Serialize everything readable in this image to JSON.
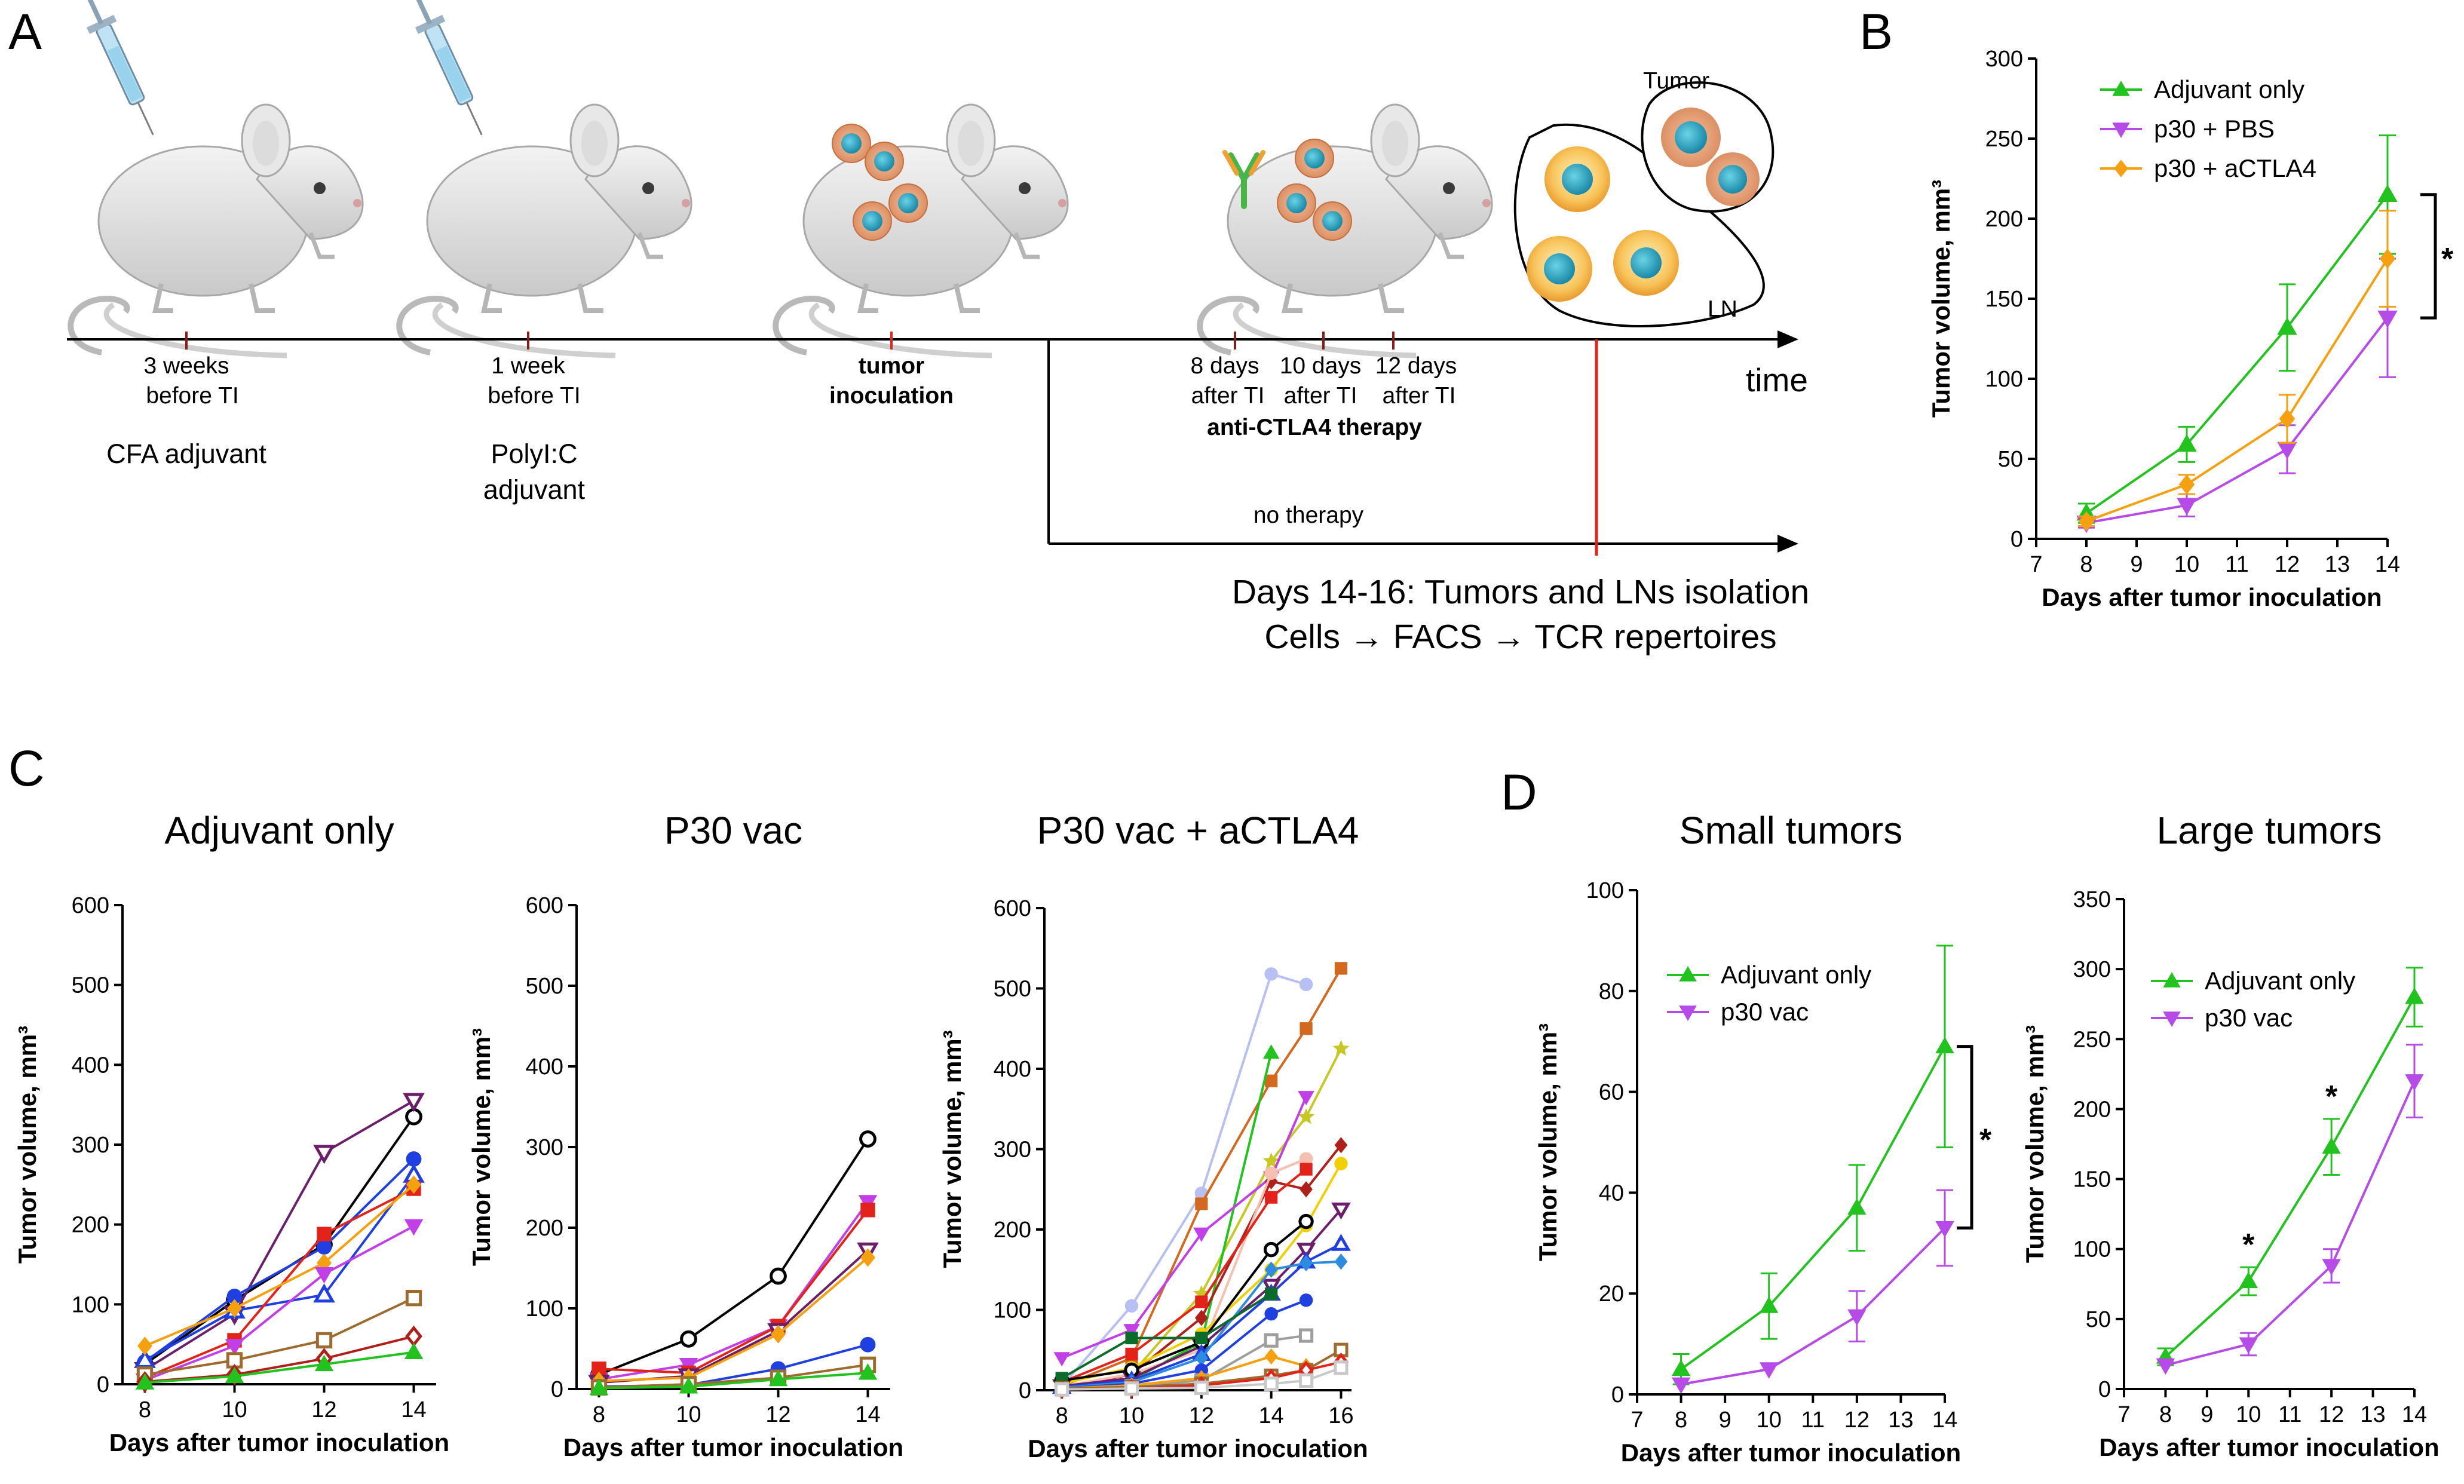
{
  "panels": {
    "A": "A",
    "B": "B",
    "C": "C",
    "D": "D"
  },
  "timeline": {
    "events": [
      {
        "line1": "3 weeks",
        "line2": "before TI",
        "note1": "CFA adjuvant",
        "note2": ""
      },
      {
        "line1": "1 week",
        "line2": "before TI",
        "note1": "PolyI:C",
        "note2": "adjuvant"
      },
      {
        "line1": "tumor",
        "line2": "inoculation",
        "note1": "",
        "note2": ""
      }
    ],
    "therapy_days": [
      "8 days",
      "10 days",
      "12 days"
    ],
    "therapy_after": [
      "after TI",
      "after TI",
      "after TI"
    ],
    "therapy_label": "anti-CTLA4 therapy",
    "no_therapy": "no therapy",
    "time_label": "time",
    "tumor_label": "Tumor",
    "ln_label": "LN",
    "footer_line1": "Days 14-16: Tumors and LNs isolation",
    "footer_line2": "Cells → FACS → TCR repertoires"
  },
  "colors": {
    "green": "#22c31f",
    "purple": "#b64be8",
    "orange": "#f5a00f",
    "red_line": "#e2231a",
    "dark": "#111111"
  },
  "chart_data": [
    {
      "id": "B",
      "type": "line",
      "xlabel": "Days after tumor inoculation",
      "ylabel": "Tumor volume, mm³",
      "xlim": [
        7,
        14
      ],
      "ylim": [
        0,
        300
      ],
      "xticks": [
        7,
        8,
        9,
        10,
        11,
        12,
        13,
        14
      ],
      "yticks": [
        0,
        50,
        100,
        150,
        200,
        250,
        300
      ],
      "x": [
        8,
        10,
        12,
        14
      ],
      "series": [
        {
          "name": "Adjuvant only",
          "color": "#22c31f",
          "marker": "triangle-up",
          "values": [
            16,
            59,
            132,
            215
          ],
          "err": [
            6,
            11,
            27,
            37
          ]
        },
        {
          "name": "p30 + PBS",
          "color": "#b64be8",
          "marker": "triangle-down",
          "values": [
            10,
            21,
            56,
            138
          ],
          "err": [
            3,
            7,
            15,
            37
          ]
        },
        {
          "name": "p30 + aCTLA4",
          "color": "#f5a00f",
          "marker": "diamond",
          "values": [
            11,
            34,
            75,
            175
          ],
          "err": [
            3,
            6,
            15,
            30
          ]
        }
      ],
      "significance": "*"
    },
    {
      "id": "C1",
      "type": "line",
      "title": "Adjuvant only",
      "xlabel": "Days after tumor inoculation",
      "ylabel": "Tumor volume, mm³",
      "xlim": [
        7.5,
        14.5
      ],
      "ylim": [
        0,
        600
      ],
      "xticks": [
        8,
        10,
        12,
        14
      ],
      "yticks": [
        0,
        100,
        200,
        300,
        400,
        500,
        600
      ],
      "x": [
        8,
        10,
        12,
        14
      ],
      "series": [
        {
          "color": "#000000",
          "marker": "o-open",
          "values": [
            25,
            105,
            175,
            335
          ]
        },
        {
          "color": "#6b1f6b",
          "marker": "v-open",
          "values": [
            18,
            88,
            290,
            355
          ]
        },
        {
          "color": "#1f3fe0",
          "marker": "o",
          "values": [
            28,
            110,
            172,
            282
          ]
        },
        {
          "color": "#1f3fe0",
          "marker": "^-open",
          "values": [
            30,
            92,
            112,
            262
          ]
        },
        {
          "color": "#e2231a",
          "marker": "s",
          "values": [
            8,
            55,
            188,
            245
          ]
        },
        {
          "color": "#f5a00f",
          "marker": "d",
          "values": [
            48,
            95,
            152,
            250
          ]
        },
        {
          "color": "#c23fe8",
          "marker": "v",
          "values": [
            5,
            48,
            138,
            198
          ]
        },
        {
          "color": "#9e6b2e",
          "marker": "s-open",
          "values": [
            12,
            30,
            55,
            108
          ]
        },
        {
          "color": "#b0201a",
          "marker": "d-open",
          "values": [
            3,
            12,
            32,
            60
          ]
        },
        {
          "color": "#22c31f",
          "marker": "^",
          "values": [
            2,
            10,
            25,
            40
          ]
        }
      ]
    },
    {
      "id": "C2",
      "type": "line",
      "title": "P30 vac",
      "xlabel": "Days after tumor inoculation",
      "ylabel": "Tumor volume, mm³",
      "xlim": [
        7.5,
        14.5
      ],
      "ylim": [
        0,
        600
      ],
      "xticks": [
        8,
        10,
        12,
        14
      ],
      "yticks": [
        0,
        100,
        200,
        300,
        400,
        500,
        600
      ],
      "x": [
        8,
        10,
        12,
        14
      ],
      "series": [
        {
          "color": "#000000",
          "marker": "o-open",
          "values": [
            18,
            62,
            140,
            310
          ]
        },
        {
          "color": "#c23fe8",
          "marker": "v",
          "values": [
            12,
            30,
            78,
            232
          ]
        },
        {
          "color": "#e2231a",
          "marker": "s",
          "values": [
            25,
            20,
            78,
            222
          ]
        },
        {
          "color": "#6b1f6b",
          "marker": "v-open",
          "values": [
            8,
            16,
            72,
            172
          ]
        },
        {
          "color": "#f5a00f",
          "marker": "d",
          "values": [
            10,
            14,
            68,
            163
          ]
        },
        {
          "color": "#1f3fe0",
          "marker": "o",
          "values": [
            3,
            5,
            25,
            55
          ]
        },
        {
          "color": "#9e6b2e",
          "marker": "s-open",
          "values": [
            2,
            6,
            14,
            30
          ]
        },
        {
          "color": "#22c31f",
          "marker": "^",
          "values": [
            1,
            3,
            12,
            20
          ]
        }
      ]
    },
    {
      "id": "C3",
      "type": "line",
      "title": "P30 vac + aCTLA4",
      "xlabel": "Days after tumor inoculation",
      "ylabel": "Tumor volume, mm³",
      "xlim": [
        7.5,
        16.3
      ],
      "ylim": [
        0,
        600
      ],
      "xticks": [
        8,
        10,
        12,
        14,
        16
      ],
      "yticks": [
        0,
        100,
        200,
        300,
        400,
        500,
        600
      ],
      "series": [
        {
          "color": "#b8bff2",
          "marker": "o",
          "x": [
            8,
            10,
            12,
            14,
            15
          ],
          "values": [
            5,
            105,
            245,
            518,
            505
          ]
        },
        {
          "color": "#d2691e",
          "marker": "s",
          "x": [
            8,
            10,
            12,
            14,
            15,
            16
          ],
          "values": [
            5,
            40,
            232,
            385,
            450,
            525
          ]
        },
        {
          "color": "#c8c825",
          "marker": "*",
          "x": [
            8,
            10,
            12,
            14,
            15,
            16
          ],
          "values": [
            3,
            20,
            120,
            285,
            340,
            425
          ]
        },
        {
          "color": "#22c31f",
          "marker": "^",
          "x": [
            8,
            10,
            12,
            14
          ],
          "values": [
            3,
            12,
            60,
            420
          ]
        },
        {
          "color": "#c23fe8",
          "marker": "v",
          "x": [
            8,
            10,
            12,
            14,
            15
          ],
          "values": [
            40,
            75,
            195,
            265,
            365
          ]
        },
        {
          "color": "#b0201a",
          "marker": "d",
          "x": [
            8,
            10,
            12,
            14,
            15,
            16
          ],
          "values": [
            2,
            20,
            90,
            260,
            250,
            305
          ]
        },
        {
          "color": "#f5c0b0",
          "marker": "o",
          "x": [
            8,
            10,
            12,
            14,
            15
          ],
          "values": [
            5,
            20,
            50,
            270,
            288
          ]
        },
        {
          "color": "#f0d000",
          "marker": "o",
          "x": [
            8,
            10,
            12,
            14,
            15,
            16
          ],
          "values": [
            8,
            28,
            70,
            150,
            205,
            282
          ]
        },
        {
          "color": "#e2231a",
          "marker": "s",
          "x": [
            8,
            10,
            12,
            14,
            15
          ],
          "values": [
            10,
            45,
            110,
            240,
            275
          ]
        },
        {
          "color": "#6b1f6b",
          "marker": "v-open",
          "x": [
            8,
            10,
            12,
            14,
            15,
            16
          ],
          "values": [
            5,
            15,
            55,
            130,
            175,
            225
          ]
        },
        {
          "color": "#000000",
          "marker": "o-open",
          "x": [
            8,
            10,
            12,
            14,
            15
          ],
          "values": [
            12,
            25,
            60,
            175,
            210
          ]
        },
        {
          "color": "#1f3fe0",
          "marker": "^-open",
          "x": [
            8,
            10,
            12,
            14,
            15,
            16
          ],
          "values": [
            4,
            12,
            45,
            120,
            160,
            182
          ]
        },
        {
          "color": "#2d8ce0",
          "marker": "d",
          "x": [
            8,
            10,
            12,
            14,
            15,
            16
          ],
          "values": [
            3,
            10,
            40,
            150,
            158,
            160
          ]
        },
        {
          "color": "#1f3fe0",
          "marker": "o",
          "x": [
            8,
            10,
            12,
            14,
            15
          ],
          "values": [
            2,
            8,
            25,
            95,
            112
          ]
        },
        {
          "color": "#0b6b2a",
          "marker": "s",
          "x": [
            8,
            10,
            12,
            14
          ],
          "values": [
            15,
            65,
            65,
            120
          ]
        },
        {
          "color": "#9e9e9e",
          "marker": "s-open",
          "x": [
            8,
            10,
            12,
            14,
            15
          ],
          "values": [
            2,
            5,
            12,
            62,
            68
          ]
        },
        {
          "color": "#f5a00f",
          "marker": "d",
          "x": [
            8,
            10,
            12,
            14,
            15
          ],
          "values": [
            2,
            6,
            15,
            42,
            30
          ]
        },
        {
          "color": "#9e6b2e",
          "marker": "s-open",
          "x": [
            8,
            10,
            12,
            14,
            15,
            16
          ],
          "values": [
            2,
            4,
            8,
            18,
            25,
            50
          ]
        },
        {
          "color": "#e2231a",
          "marker": "d-open",
          "x": [
            8,
            10,
            12,
            14,
            15,
            16
          ],
          "values": [
            1,
            2,
            6,
            15,
            25,
            35
          ]
        },
        {
          "color": "#c8c8c8",
          "marker": "s-open",
          "x": [
            8,
            10,
            12,
            14,
            15,
            16
          ],
          "values": [
            1,
            2,
            3,
            8,
            12,
            28
          ]
        }
      ]
    },
    {
      "id": "D1",
      "type": "line",
      "title": "Small tumors",
      "xlabel": "Days after tumor inoculation",
      "ylabel": "Tumor volume, mm³",
      "xlim": [
        7,
        14
      ],
      "ylim": [
        0,
        100
      ],
      "xticks": [
        7,
        8,
        9,
        10,
        11,
        12,
        13,
        14
      ],
      "yticks": [
        0,
        20,
        40,
        60,
        80,
        100
      ],
      "x": [
        8,
        10,
        12,
        14
      ],
      "series": [
        {
          "name": "Adjuvant only",
          "color": "#22c31f",
          "marker": "triangle-up",
          "values": [
            5,
            17.5,
            37,
            69
          ],
          "err": [
            3,
            6.5,
            8.5,
            20
          ]
        },
        {
          "name": "p30 vac",
          "color": "#b64be8",
          "marker": "triangle-down",
          "values": [
            2,
            5,
            15.5,
            33
          ],
          "err": [
            0,
            0,
            5,
            7.5
          ]
        }
      ],
      "significance": "*"
    },
    {
      "id": "D2",
      "type": "line",
      "title": "Large tumors",
      "xlabel": "Days after tumor inoculation",
      "ylabel": "Tumor volume, mm³",
      "xlim": [
        7,
        14
      ],
      "ylim": [
        0,
        350
      ],
      "xticks": [
        7,
        8,
        9,
        10,
        11,
        12,
        13,
        14
      ],
      "yticks": [
        0,
        50,
        100,
        150,
        200,
        250,
        300,
        350
      ],
      "x": [
        8,
        10,
        12,
        14
      ],
      "series": [
        {
          "name": "Adjuvant only",
          "color": "#22c31f",
          "marker": "triangle-up",
          "values": [
            23,
            77,
            173,
            280
          ],
          "err": [
            6,
            10,
            20,
            21
          ]
        },
        {
          "name": "p30 vac",
          "color": "#b64be8",
          "marker": "triangle-down",
          "values": [
            17,
            32,
            88,
            220
          ],
          "err": [
            0,
            8,
            12,
            26
          ]
        }
      ],
      "annotations": [
        "*",
        "*"
      ]
    }
  ]
}
